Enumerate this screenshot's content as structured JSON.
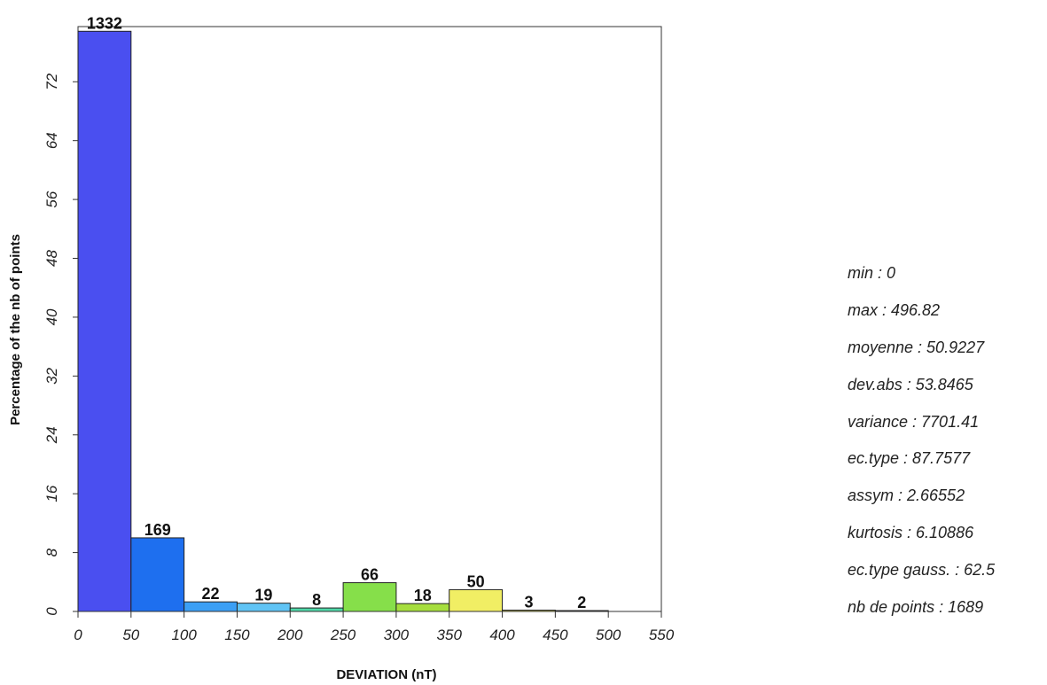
{
  "chart_data": {
    "type": "bar",
    "xlabel": "DEVIATION (nT)",
    "ylabel": "Percentage of the nb of points",
    "bin_edges": [
      0,
      50,
      100,
      150,
      200,
      250,
      300,
      350,
      400,
      450,
      500
    ],
    "counts": [
      1332,
      169,
      22,
      19,
      8,
      66,
      18,
      50,
      3,
      2
    ],
    "total": 1689,
    "bar_colors": [
      "#4a4ff0",
      "#1e6fef",
      "#3b9ff5",
      "#60c4f5",
      "#4fd8a8",
      "#86df4a",
      "#a6de3e",
      "#f1ee64",
      "#d8d25a",
      "#c8c8c8"
    ],
    "xlim": [
      0,
      550
    ],
    "ylim": [
      0,
      79.5
    ],
    "xticks": [
      0,
      50,
      100,
      150,
      200,
      250,
      300,
      350,
      400,
      450,
      500,
      550
    ],
    "yticks": [
      0,
      8,
      16,
      24,
      32,
      40,
      48,
      56,
      64,
      72
    ],
    "grid": false
  },
  "stats": [
    "min : 0",
    "max : 496.82",
    "moyenne : 50.9227",
    "dev.abs : 53.8465",
    "variance : 7701.41",
    "ec.type : 87.7577",
    "assym : 2.66552",
    "kurtosis : 6.10886",
    "ec.type gauss. : 62.5",
    "nb de points : 1689"
  ]
}
